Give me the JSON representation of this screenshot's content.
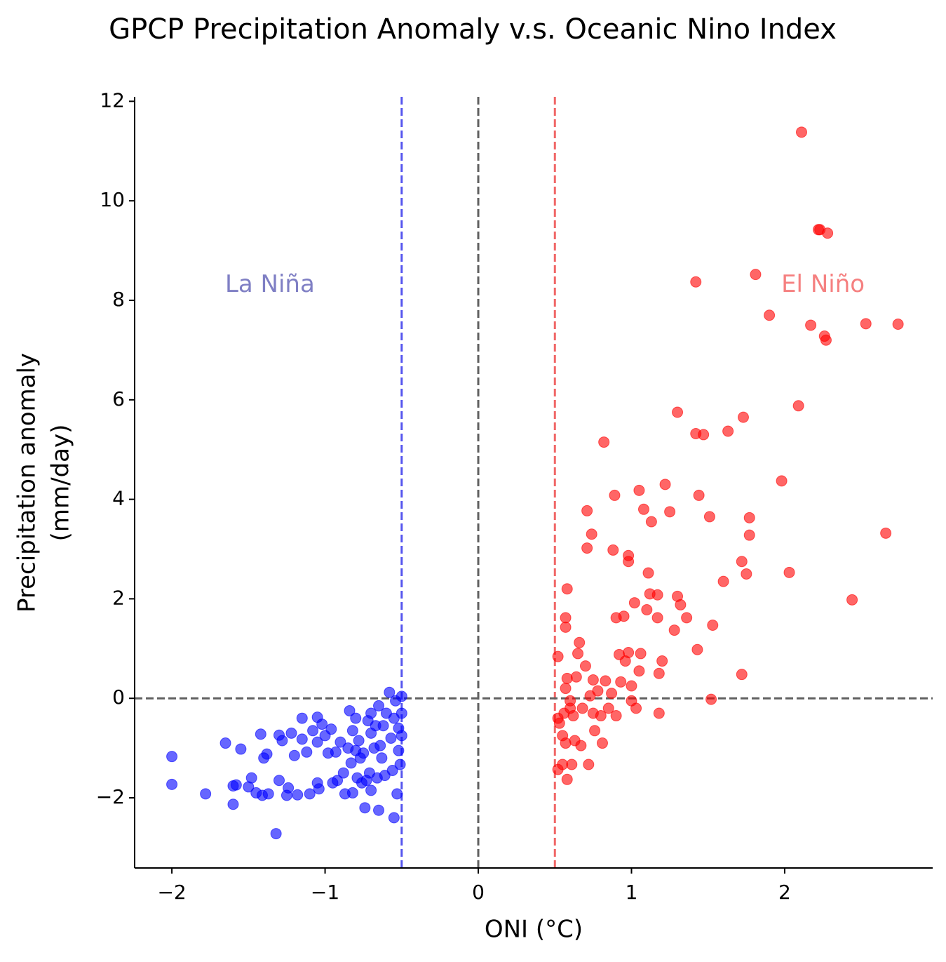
{
  "chart_data": {
    "type": "scatter",
    "title": "GPCP Precipitation Anomaly v.s. Oceanic Nino Index",
    "xlabel": "ONI (°C)",
    "ylabel": [
      "Precipitation anomaly",
      "(mm/day)"
    ],
    "xlim": [
      -2.243,
      2.966
    ],
    "ylim": [
      -3.41,
      12.09
    ],
    "xticks": [
      {
        "value": -2,
        "label": "−2"
      },
      {
        "value": -1,
        "label": "−1"
      },
      0,
      1,
      2
    ],
    "yticks": [
      {
        "value": -2,
        "label": "−2"
      },
      0,
      2,
      4,
      6,
      8,
      10,
      12
    ],
    "vlines": [
      {
        "value": -0.5,
        "color": "#5555ee"
      },
      {
        "value": 0,
        "color": "#606060"
      },
      {
        "value": 0.5,
        "color": "#f06666"
      }
    ],
    "hlines": [
      {
        "value": 0,
        "color": "#606060"
      }
    ],
    "annotations": [
      {
        "text": "La Niña",
        "x": -1.36,
        "y": 8.3,
        "color": "#7f7fc4"
      },
      {
        "text": "El Niño",
        "x": 2.25,
        "y": 8.3,
        "color": "#f58080"
      }
    ],
    "series": [
      {
        "color": "#0000ff",
        "x": [
          -2.0,
          -2.0,
          -1.78,
          -1.65,
          -1.6,
          -1.6,
          -1.58,
          -1.55,
          -1.5,
          -1.48,
          -1.45,
          -1.42,
          -1.41,
          -1.4,
          -1.38,
          -1.37,
          -1.32,
          -1.3,
          -1.3,
          -1.28,
          -1.25,
          -1.24,
          -1.22,
          -1.2,
          -1.18,
          -1.15,
          -1.15,
          -1.12,
          -1.1,
          -1.08,
          -1.05,
          -1.05,
          -1.05,
          -1.04,
          -1.02,
          -1.0,
          -0.98,
          -0.96,
          -0.95,
          -0.93,
          -0.92,
          -0.9,
          -0.88,
          -0.87,
          -0.85,
          -0.84,
          -0.83,
          -0.82,
          -0.82,
          -0.8,
          -0.8,
          -0.79,
          -0.78,
          -0.77,
          -0.76,
          -0.75,
          -0.74,
          -0.73,
          -0.72,
          -0.71,
          -0.7,
          -0.7,
          -0.7,
          -0.68,
          -0.67,
          -0.66,
          -0.65,
          -0.65,
          -0.64,
          -0.63,
          -0.62,
          -0.61,
          -0.6,
          -0.58,
          -0.57,
          -0.56,
          -0.55,
          -0.55,
          -0.54,
          -0.53,
          -0.52,
          -0.51,
          -0.5,
          -0.5,
          -0.5,
          -0.52
        ],
        "y": [
          -1.17,
          -1.73,
          -1.92,
          -0.9,
          -2.13,
          -1.76,
          -1.74,
          -1.02,
          -1.78,
          -1.6,
          -1.9,
          -0.72,
          -1.95,
          -1.2,
          -1.12,
          -1.92,
          -2.72,
          -1.65,
          -0.74,
          -0.85,
          -1.95,
          -1.8,
          -0.7,
          -1.15,
          -1.94,
          -0.82,
          -0.4,
          -1.08,
          -1.92,
          -0.65,
          -0.38,
          -0.88,
          -1.7,
          -1.82,
          -0.52,
          -0.75,
          -1.1,
          -0.62,
          -1.7,
          -1.08,
          -1.65,
          -0.88,
          -1.5,
          -1.92,
          -1.0,
          -0.25,
          -1.3,
          -0.65,
          -1.9,
          -1.05,
          -0.4,
          -1.6,
          -0.85,
          -1.2,
          -1.7,
          -1.1,
          -2.2,
          -1.65,
          -0.45,
          -1.5,
          -0.3,
          -0.7,
          -1.85,
          -1.0,
          -0.55,
          -1.6,
          -0.15,
          -2.25,
          -0.95,
          -1.2,
          -0.55,
          -1.55,
          -0.3,
          0.12,
          -0.8,
          -1.45,
          -0.4,
          -2.4,
          -0.05,
          -1.92,
          -0.6,
          -1.33,
          0.04,
          -0.3,
          -0.75,
          -1.05
        ]
      },
      {
        "color": "#ff0000",
        "x": [
          0.52,
          0.52,
          0.52,
          0.53,
          0.55,
          0.55,
          0.56,
          0.57,
          0.57,
          0.57,
          0.57,
          0.58,
          0.58,
          0.58,
          0.6,
          0.6,
          0.61,
          0.62,
          0.63,
          0.64,
          0.65,
          0.66,
          0.67,
          0.68,
          0.7,
          0.71,
          0.71,
          0.72,
          0.73,
          0.74,
          0.75,
          0.75,
          0.76,
          0.78,
          0.8,
          0.81,
          0.82,
          0.83,
          0.85,
          0.87,
          0.88,
          0.89,
          0.9,
          0.9,
          0.92,
          0.93,
          0.95,
          0.96,
          0.98,
          0.98,
          0.98,
          1.0,
          1.0,
          1.02,
          1.03,
          1.05,
          1.05,
          1.06,
          1.08,
          1.1,
          1.11,
          1.12,
          1.13,
          1.17,
          1.17,
          1.18,
          1.18,
          1.2,
          1.22,
          1.25,
          1.28,
          1.3,
          1.3,
          1.32,
          1.36,
          1.42,
          1.42,
          1.43,
          1.44,
          1.47,
          1.51,
          1.52,
          1.53,
          1.6,
          1.63,
          1.72,
          1.72,
          1.73,
          1.75,
          1.77,
          1.77,
          1.81,
          1.9,
          1.98,
          2.03,
          2.09,
          2.11,
          2.17,
          2.22,
          2.23,
          2.26,
          2.27,
          2.28,
          2.44,
          2.53,
          2.66,
          2.74
        ],
        "y": [
          -1.43,
          0.84,
          -0.4,
          -0.5,
          -1.33,
          -0.75,
          -0.3,
          0.2,
          1.62,
          1.43,
          -0.9,
          2.2,
          0.4,
          -1.63,
          -0.05,
          -0.2,
          -1.33,
          -0.35,
          -0.85,
          0.43,
          0.9,
          1.12,
          -0.95,
          -0.2,
          0.65,
          3.77,
          3.02,
          -1.33,
          0.05,
          3.3,
          0.37,
          -0.3,
          -0.65,
          0.15,
          -0.35,
          -0.9,
          5.15,
          0.35,
          -0.2,
          0.1,
          2.98,
          4.08,
          1.62,
          -0.35,
          0.88,
          0.33,
          1.65,
          0.75,
          2.75,
          0.92,
          2.87,
          0.25,
          -0.05,
          1.92,
          -0.2,
          4.18,
          0.55,
          0.9,
          3.8,
          1.78,
          2.52,
          2.1,
          3.55,
          2.08,
          1.62,
          0.5,
          -0.3,
          0.75,
          4.3,
          3.75,
          1.37,
          2.05,
          5.75,
          1.88,
          1.62,
          5.32,
          8.37,
          0.98,
          4.08,
          5.3,
          3.65,
          -0.02,
          1.47,
          2.35,
          5.37,
          0.48,
          2.75,
          5.65,
          2.5,
          3.28,
          3.63,
          8.52,
          7.7,
          4.37,
          2.53,
          5.88,
          11.38,
          7.5,
          9.42,
          9.42,
          7.28,
          7.2,
          9.35,
          1.98,
          7.53,
          3.32,
          7.52
        ]
      }
    ]
  }
}
